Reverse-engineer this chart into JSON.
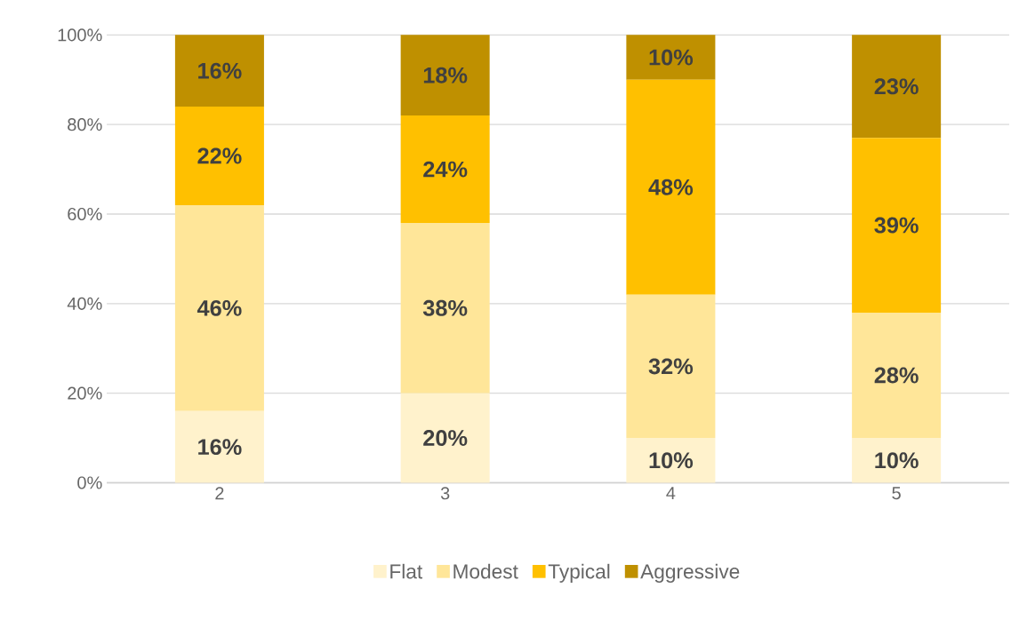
{
  "chart_data": {
    "type": "bar",
    "stacked": true,
    "categories": [
      "2",
      "3",
      "4",
      "5"
    ],
    "series": [
      {
        "name": "Flat",
        "color": "#fff2cc",
        "values": [
          16,
          20,
          10,
          10
        ],
        "value_labels": [
          "16%",
          "20%",
          "10%",
          "10%"
        ]
      },
      {
        "name": "Modest",
        "color": "#ffe699",
        "values": [
          46,
          38,
          32,
          28
        ],
        "value_labels": [
          "46%",
          "38%",
          "32%",
          "28%"
        ]
      },
      {
        "name": "Typical",
        "color": "#ffc000",
        "values": [
          22,
          24,
          48,
          39
        ],
        "value_labels": [
          "22%",
          "24%",
          "48%",
          "39%"
        ]
      },
      {
        "name": "Aggressive",
        "color": "#bf9000",
        "values": [
          16,
          18,
          10,
          23
        ],
        "value_labels": [
          "16%",
          "18%",
          "10%",
          "23%"
        ]
      }
    ],
    "ylim": [
      0,
      100
    ],
    "yticks": [
      {
        "value": 0,
        "label": "0%"
      },
      {
        "value": 20,
        "label": "20%"
      },
      {
        "value": 40,
        "label": "40%"
      },
      {
        "value": 60,
        "label": "60%"
      },
      {
        "value": 80,
        "label": "80%"
      },
      {
        "value": 100,
        "label": "100%"
      }
    ],
    "grid": "y",
    "legend": "bottom"
  }
}
